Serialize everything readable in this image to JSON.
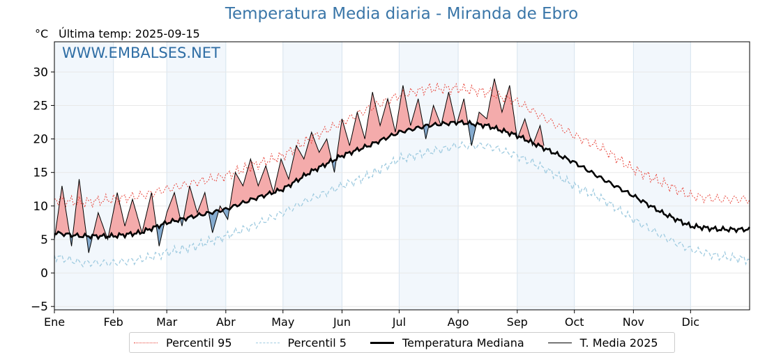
{
  "title": "Temperatura Media diaria - Miranda de Ebro",
  "unit_label": "°C",
  "last_temp_label": "Última temp: 2025-09-15",
  "watermark": "WWW.EMBALSES.NET",
  "colors": {
    "title": "#3a76a8",
    "watermark": "#2e6da4",
    "p95": "#e8443a",
    "p5": "#9fcbe0",
    "median": "#000000",
    "current": "#000000",
    "fill_above": "#f3a6a6",
    "fill_below": "#7ea7cc",
    "month_band": "#e9f1fa"
  },
  "legend": [
    {
      "label": "Percentil 95",
      "key": "p95"
    },
    {
      "label": "Percentil 5",
      "key": "p5"
    },
    {
      "label": "Temperatura Mediana",
      "key": "median"
    },
    {
      "label": "T. Media 2025",
      "key": "current"
    }
  ],
  "chart_data": {
    "type": "line",
    "title": "Temperatura Media diaria - Miranda de Ebro",
    "ylabel": "°C",
    "ylim": [
      -5.5,
      34.5
    ],
    "yticks": [
      30,
      25,
      20,
      15,
      10,
      5,
      0,
      -5
    ],
    "ytick_labels": [
      "30",
      "25",
      "20",
      "15",
      "10",
      "5",
      "0",
      "−5"
    ],
    "xlim": [
      1,
      366
    ],
    "months": [
      "Ene",
      "Feb",
      "Mar",
      "Abr",
      "May",
      "Jun",
      "Jul",
      "Ago",
      "Sep",
      "Oct",
      "Nov",
      "Dic"
    ],
    "month_start_days": [
      1,
      32,
      60,
      91,
      121,
      152,
      182,
      213,
      244,
      274,
      305,
      335
    ],
    "grid": true,
    "legend_position": "bottom",
    "series": [
      {
        "name": "Percentil 95",
        "key": "p95",
        "style": "dotted",
        "x": [
          1,
          15,
          32,
          46,
          60,
          75,
          91,
          105,
          121,
          135,
          152,
          166,
          182,
          197,
          213,
          228,
          244,
          259,
          274,
          289,
          305,
          320,
          335,
          350,
          366
        ],
        "values": [
          11.0,
          10.5,
          11.0,
          11.5,
          12.5,
          13.5,
          14.5,
          16.0,
          17.5,
          20.0,
          22.5,
          24.5,
          26.5,
          27.5,
          27.5,
          27.0,
          25.5,
          23.0,
          20.5,
          18.5,
          15.5,
          13.5,
          11.5,
          11.0,
          11.0
        ]
      },
      {
        "name": "Percentil 5",
        "key": "p5",
        "style": "dashed",
        "x": [
          1,
          15,
          32,
          46,
          60,
          75,
          91,
          105,
          121,
          135,
          152,
          166,
          182,
          197,
          213,
          228,
          244,
          259,
          274,
          289,
          305,
          320,
          335,
          350,
          366
        ],
        "values": [
          2.5,
          1.5,
          1.5,
          2.0,
          3.0,
          4.0,
          5.5,
          7.0,
          9.0,
          11.0,
          13.0,
          14.5,
          17.0,
          18.0,
          19.0,
          19.0,
          17.5,
          15.5,
          13.0,
          11.0,
          8.0,
          5.5,
          3.5,
          2.5,
          2.0
        ]
      },
      {
        "name": "Temperatura Mediana",
        "key": "median",
        "style": "solid-thick",
        "x": [
          1,
          15,
          32,
          46,
          60,
          75,
          91,
          105,
          121,
          135,
          152,
          166,
          182,
          197,
          213,
          228,
          244,
          259,
          274,
          289,
          305,
          320,
          335,
          350,
          366
        ],
        "values": [
          6.0,
          5.5,
          5.5,
          6.0,
          7.5,
          8.5,
          9.5,
          11.0,
          12.5,
          15.0,
          17.5,
          19.0,
          21.0,
          22.0,
          22.5,
          22.0,
          20.5,
          18.5,
          16.5,
          14.0,
          11.5,
          9.0,
          7.0,
          6.5,
          6.5
        ]
      },
      {
        "name": "T. Media 2025",
        "key": "current",
        "style": "solid-thin",
        "x": [
          1,
          5,
          10,
          14,
          19,
          24,
          29,
          34,
          38,
          42,
          47,
          52,
          56,
          60,
          64,
          68,
          72,
          76,
          80,
          84,
          88,
          92,
          96,
          100,
          104,
          108,
          112,
          116,
          120,
          124,
          128,
          132,
          136,
          140,
          144,
          148,
          152,
          156,
          160,
          164,
          168,
          172,
          176,
          180,
          184,
          188,
          192,
          196,
          200,
          204,
          208,
          212,
          216,
          220,
          224,
          228,
          232,
          236,
          240,
          244,
          248,
          252,
          256,
          258
        ],
        "values": [
          5,
          13,
          4,
          14,
          3,
          9,
          5,
          12,
          7,
          11,
          6,
          12,
          4,
          9,
          12,
          7,
          13,
          9,
          12,
          6,
          10,
          8,
          15,
          13,
          17,
          13,
          16,
          12,
          17,
          14,
          19,
          17,
          21,
          18,
          20,
          15,
          23,
          19,
          24,
          20,
          27,
          22,
          26,
          21,
          28,
          22,
          26,
          20,
          25,
          22,
          27,
          22,
          26,
          19,
          24,
          23,
          29,
          24,
          28,
          20,
          23,
          19,
          22,
          19
        ]
      }
    ]
  }
}
